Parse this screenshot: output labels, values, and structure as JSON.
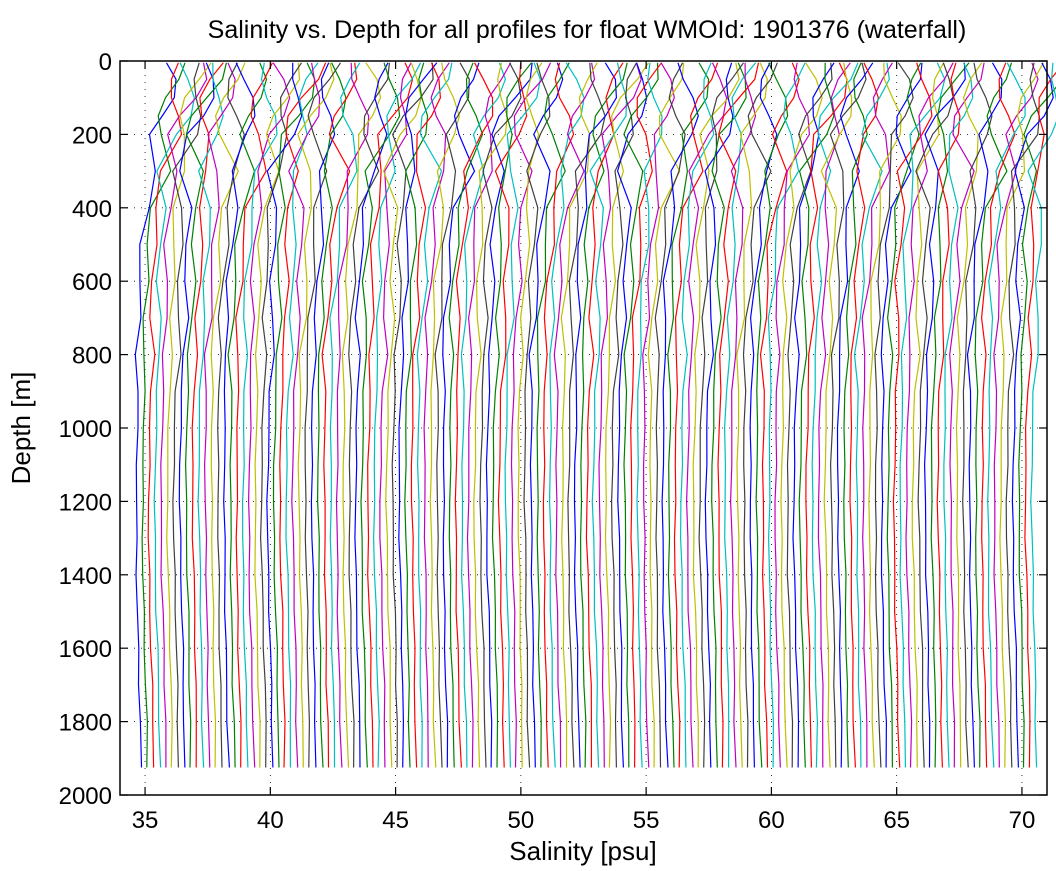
{
  "chart_data": {
    "type": "line",
    "title": "Salinity vs. Depth for all profiles for float WMOId: 1901376 (waterfall)",
    "xlabel": "Salinity [psu]",
    "ylabel": "Depth [m]",
    "xlim": [
      34.0,
      71.0
    ],
    "ylim": [
      0,
      2000
    ],
    "y_reversed": true,
    "grid": true,
    "x_ticks": [
      35,
      40,
      45,
      50,
      55,
      60,
      65,
      70
    ],
    "y_ticks": [
      0,
      200,
      400,
      600,
      800,
      1000,
      1200,
      1400,
      1600,
      1800,
      2000
    ],
    "x_tick_labels": [
      "35",
      "40",
      "45",
      "50",
      "55",
      "60",
      "65",
      "70"
    ],
    "y_tick_labels": [
      "0",
      "200",
      "400",
      "600",
      "800",
      "1000",
      "1200",
      "1400",
      "1600",
      "1800",
      "2000"
    ],
    "profile_count": 144,
    "waterfall_offset_psu": 0.25,
    "bottom_depth_m": 1925,
    "depths": [
      5,
      50,
      100,
      150,
      200,
      300,
      400,
      500,
      600,
      700,
      800,
      900,
      1000,
      1100,
      1200,
      1300,
      1400,
      1500,
      1600,
      1700,
      1800,
      1925
    ],
    "base_profile_psu": [
      35.8,
      35.75,
      35.6,
      35.45,
      35.3,
      35.18,
      35.05,
      34.93,
      34.86,
      34.8,
      34.75,
      34.71,
      34.68,
      34.66,
      34.65,
      34.66,
      34.68,
      34.71,
      34.74,
      34.77,
      34.8,
      34.83
    ],
    "series_colors": [
      "#0000ff",
      "#008000",
      "#ff0000",
      "#00bfbf",
      "#bf00bf",
      "#bfbf00",
      "#404040"
    ]
  }
}
